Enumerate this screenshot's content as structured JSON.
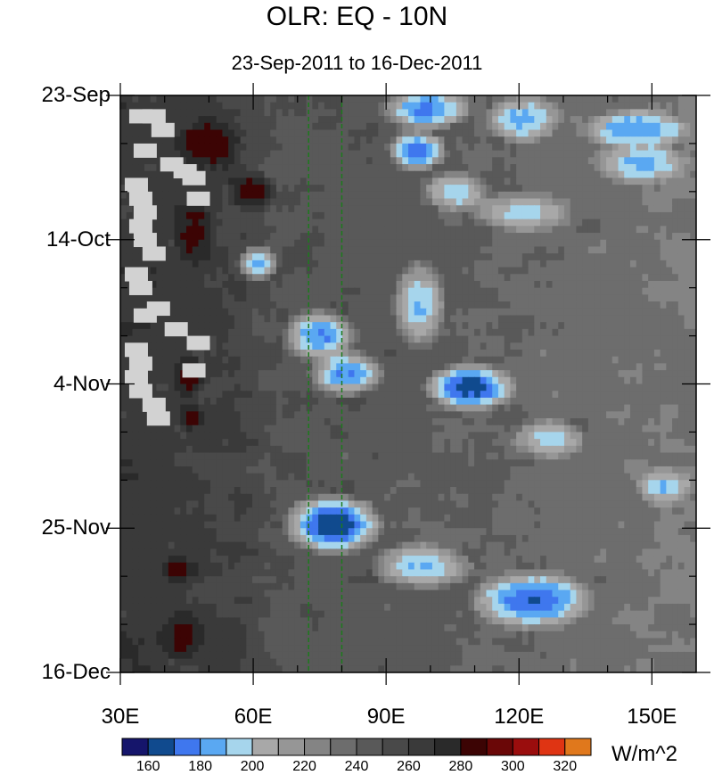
{
  "chart_data": {
    "type": "heatmap",
    "title": "OLR: EQ - 10N",
    "subtitle": "23-Sep-2011 to 16-Dec-2011",
    "x_ticks": [
      {
        "value": 30,
        "label": "30E"
      },
      {
        "value": 60,
        "label": "60E"
      },
      {
        "value": 90,
        "label": "90E"
      },
      {
        "value": 120,
        "label": "120E"
      },
      {
        "value": 150,
        "label": "150E"
      }
    ],
    "xlim": [
      30,
      160
    ],
    "y_ticks": [
      {
        "date": "2011-09-23",
        "label": "23-Sep"
      },
      {
        "date": "2011-10-14",
        "label": "14-Oct"
      },
      {
        "date": "2011-11-04",
        "label": "4-Nov"
      },
      {
        "date": "2011-11-25",
        "label": "25-Nov"
      },
      {
        "date": "2011-12-16",
        "label": "16-Dec"
      }
    ],
    "ylim": [
      "2011-09-23",
      "2011-12-16"
    ],
    "y_direction": "top-to-bottom",
    "reference_lines_lon": [
      72.5,
      80
    ],
    "reference_line_color": "#1d7a1d",
    "colorbar": {
      "units": "W/m^2",
      "levels": [
        150,
        160,
        170,
        180,
        190,
        200,
        210,
        220,
        230,
        240,
        250,
        260,
        270,
        280,
        290,
        300,
        310,
        320,
        330
      ],
      "labels": [
        "160",
        "180",
        "200",
        "220",
        "240",
        "260",
        "280",
        "300",
        "320"
      ],
      "label_values": [
        160,
        180,
        200,
        220,
        240,
        260,
        280,
        300,
        320
      ],
      "colors": [
        "#15156b",
        "#104a8e",
        "#3f77ee",
        "#5aa8f2",
        "#a6d5ec",
        "#a8a8a8",
        "#969696",
        "#848484",
        "#6d6d6d",
        "#595959",
        "#494949",
        "#3a3a3a",
        "#2a2a2a",
        "#3c0404",
        "#6a0707",
        "#9a0d0d",
        "#df3413",
        "#e0781c"
      ],
      "missing_color": "#d2d2d2"
    },
    "convective_bands": [
      {
        "lon_start": 90,
        "lon_end": 108,
        "date_start": "2011-09-23",
        "date_end": "2011-09-27",
        "olr": 175
      },
      {
        "lon_start": 114,
        "lon_end": 128,
        "date_start": "2011-09-24",
        "date_end": "2011-09-29",
        "olr": 185
      },
      {
        "lon_start": 135,
        "lon_end": 158,
        "date_start": "2011-09-26",
        "date_end": "2011-09-30",
        "olr": 180
      },
      {
        "lon_start": 92,
        "lon_end": 102,
        "date_start": "2011-09-29",
        "date_end": "2011-10-03",
        "olr": 172
      },
      {
        "lon_start": 138,
        "lon_end": 158,
        "date_start": "2011-10-01",
        "date_end": "2011-10-05",
        "olr": 185
      },
      {
        "lon_start": 100,
        "lon_end": 112,
        "date_start": "2011-10-05",
        "date_end": "2011-10-09",
        "olr": 192
      },
      {
        "lon_start": 110,
        "lon_end": 132,
        "date_start": "2011-10-08",
        "date_end": "2011-10-12",
        "olr": 195
      },
      {
        "lon_start": 58,
        "lon_end": 64,
        "date_start": "2011-10-16",
        "date_end": "2011-10-19",
        "olr": 185
      },
      {
        "lon_start": 93,
        "lon_end": 102,
        "date_start": "2011-10-18",
        "date_end": "2011-10-29",
        "olr": 188
      },
      {
        "lon_start": 68,
        "lon_end": 82,
        "date_start": "2011-10-25",
        "date_end": "2011-10-31",
        "olr": 178
      },
      {
        "lon_start": 74,
        "lon_end": 88,
        "date_start": "2011-10-31",
        "date_end": "2011-11-05",
        "olr": 180
      },
      {
        "lon_start": 100,
        "lon_end": 118,
        "date_start": "2011-11-02",
        "date_end": "2011-11-07",
        "olr": 162
      },
      {
        "lon_start": 120,
        "lon_end": 134,
        "date_start": "2011-11-10",
        "date_end": "2011-11-14",
        "olr": 195
      },
      {
        "lon_start": 68,
        "lon_end": 88,
        "date_start": "2011-11-21",
        "date_end": "2011-11-28",
        "olr": 160
      },
      {
        "lon_start": 88,
        "lon_end": 108,
        "date_start": "2011-11-28",
        "date_end": "2011-12-03",
        "olr": 188
      },
      {
        "lon_start": 110,
        "lon_end": 136,
        "date_start": "2011-12-02",
        "date_end": "2011-12-09",
        "olr": 170
      },
      {
        "lon_start": 148,
        "lon_end": 158,
        "date_start": "2011-11-17",
        "date_end": "2011-11-21",
        "olr": 190
      }
    ],
    "warm_patches": [
      {
        "lon_start": 44,
        "lon_end": 56,
        "date_start": "2011-09-27",
        "date_end": "2011-10-03",
        "olr": 290
      },
      {
        "lon_start": 56,
        "lon_end": 64,
        "date_start": "2011-10-05",
        "date_end": "2011-10-09",
        "olr": 285
      },
      {
        "lon_start": 43,
        "lon_end": 50,
        "date_start": "2011-10-09",
        "date_end": "2011-10-17",
        "olr": 285
      },
      {
        "lon_start": 43,
        "lon_end": 48,
        "date_start": "2011-11-01",
        "date_end": "2011-11-05",
        "olr": 285
      },
      {
        "lon_start": 44,
        "lon_end": 48,
        "date_start": "2011-11-08",
        "date_end": "2011-11-10",
        "olr": 285
      },
      {
        "lon_start": 40,
        "lon_end": 46,
        "date_start": "2011-11-30",
        "date_end": "2011-12-02",
        "olr": 285
      },
      {
        "lon_start": 40,
        "lon_end": 48,
        "date_start": "2011-12-08",
        "date_end": "2011-12-14",
        "olr": 285
      }
    ]
  }
}
